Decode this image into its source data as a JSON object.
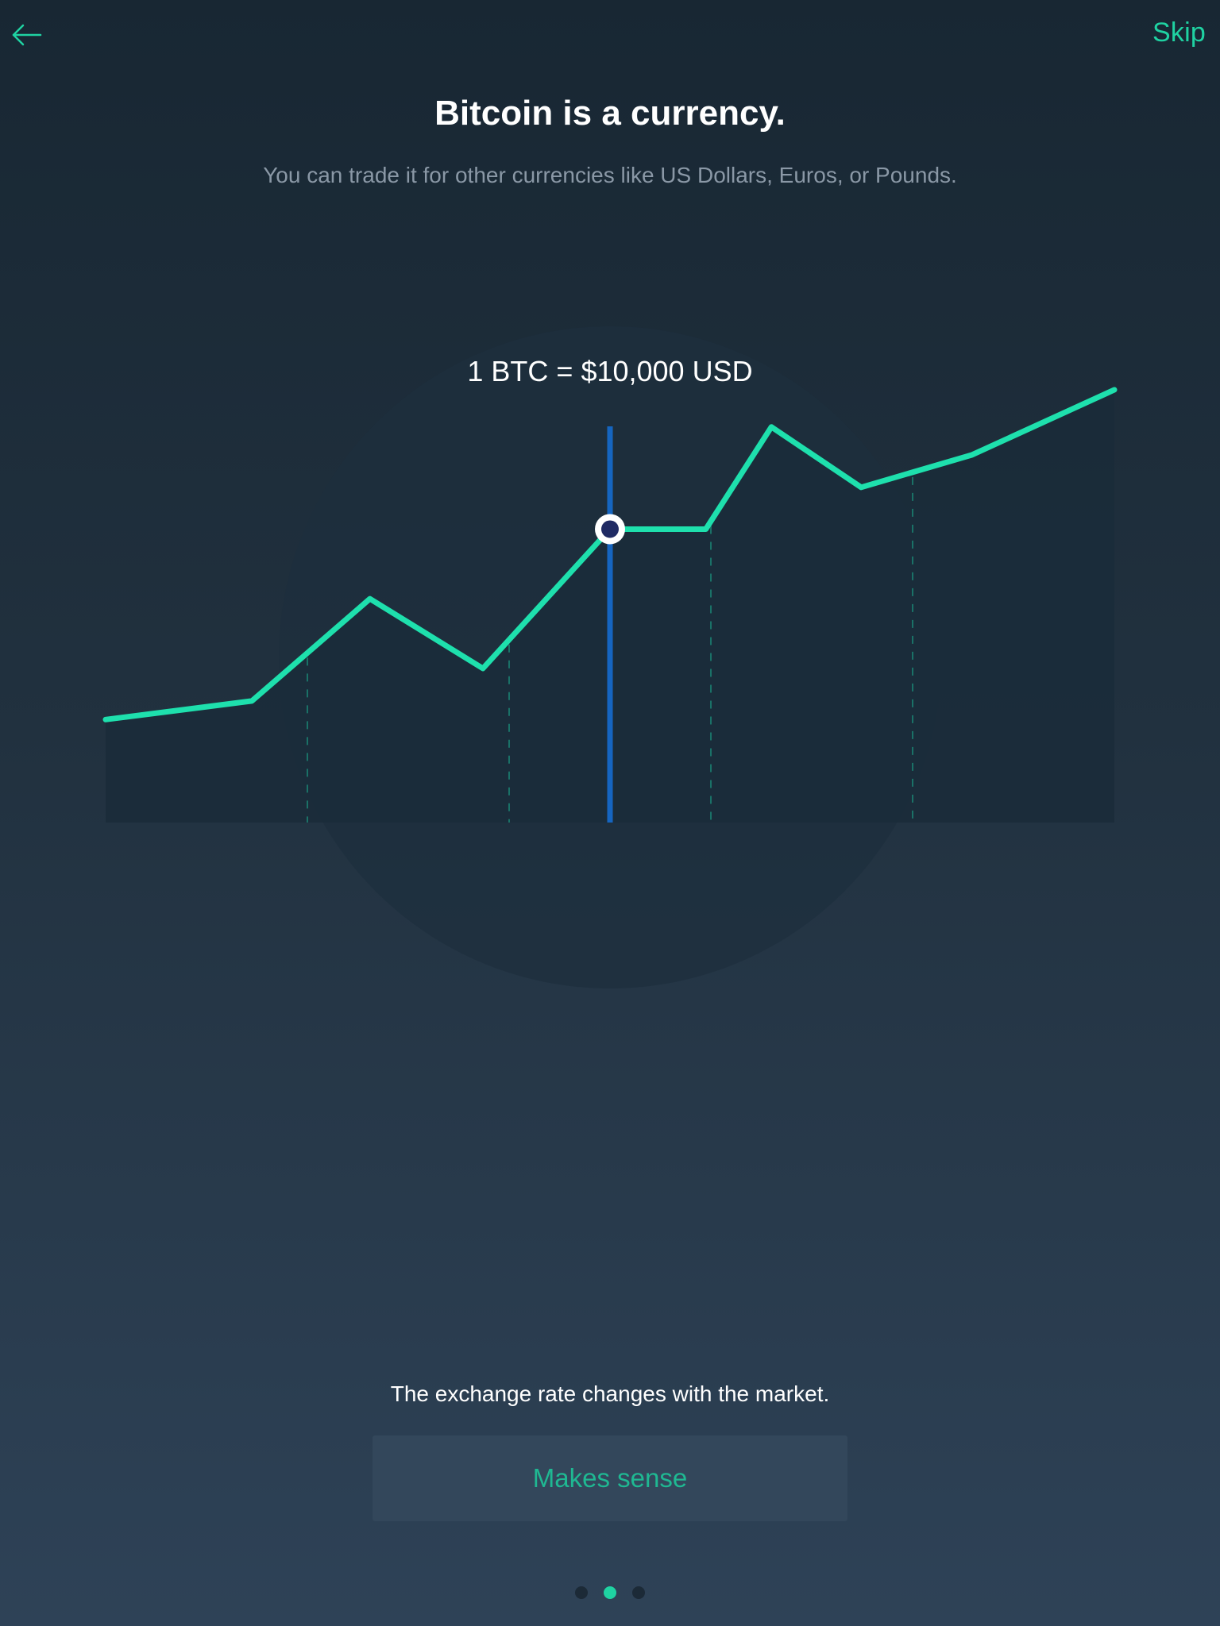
{
  "header": {
    "back_icon": "arrow-left-icon",
    "skip_label": "Skip"
  },
  "content": {
    "title": "Bitcoin is a currency.",
    "subtitle": "You can trade it for other currencies like US Dollars, Euros, or Pounds.",
    "rate_label": "1 BTC = $10,000 USD",
    "market_note": "The exchange rate changes with the market.",
    "cta_label": "Makes sense"
  },
  "pager": {
    "total": 3,
    "active_index": 1
  },
  "colors": {
    "accent": "#1fd2a2",
    "line": "#1ee0ad",
    "marker_line": "#1565c0",
    "marker_dot": "#1f2a63"
  },
  "chart_data": {
    "type": "line",
    "series": [
      {
        "values": [
          22,
          26,
          48,
          33,
          63,
          63,
          85,
          72,
          79,
          93
        ]
      }
    ],
    "x": [
      0,
      0.145,
      0.262,
      0.374,
      0.5,
      0.595,
      0.66,
      0.749,
      0.859,
      1.0
    ],
    "ylim": [
      0,
      100
    ],
    "highlight_index": 4,
    "grid": "vertical-dashed"
  }
}
